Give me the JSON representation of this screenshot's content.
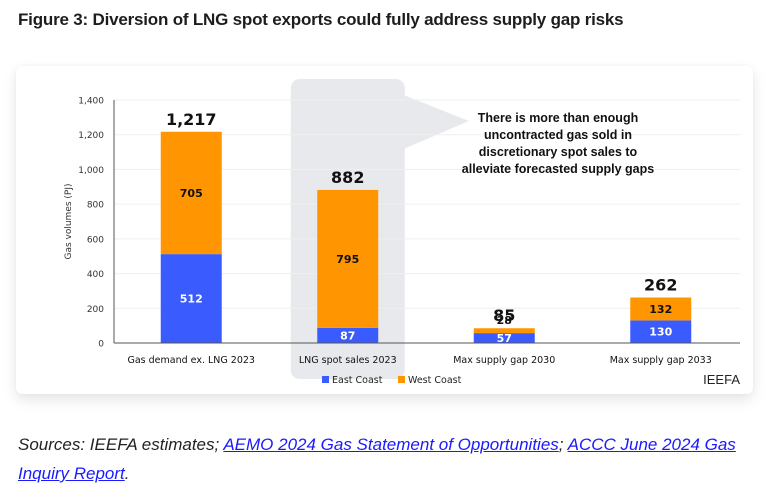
{
  "figure": {
    "title": "Figure 3: Diversion of LNG spot exports could fully address supply gap risks",
    "watermark": "IEEFA",
    "callout": [
      "There is more than enough",
      "uncontracted gas sold in",
      "discretionary spot sales to",
      "alleviate forecasted supply gaps"
    ]
  },
  "sources": {
    "prefix": "Sources: IEEFA estimates; ",
    "link1": "AEMO 2024 Gas Statement of Opportunities",
    "sep": "; ",
    "link2": "ACCC June 2024 Gas Inquiry Report",
    "suffix": "."
  },
  "chart_data": {
    "type": "bar",
    "stacked": true,
    "title": "",
    "xlabel": "",
    "ylabel": "Gas volumes (PJ)",
    "ylim": [
      0,
      1400
    ],
    "yticks": [
      0,
      200,
      400,
      600,
      800,
      1000,
      1200,
      1400
    ],
    "ytick_labels": [
      "0",
      "200",
      "400",
      "600",
      "800",
      "1,000",
      "1,200",
      "1,400"
    ],
    "grid": true,
    "categories": [
      "Gas demand ex. LNG 2023",
      "LNG spot sales 2023",
      "Max supply gap 2030",
      "Max supply gap 2033"
    ],
    "series": [
      {
        "name": "East Coast",
        "color": "#3a5cff",
        "values": [
          512,
          87,
          57,
          130
        ]
      },
      {
        "name": "West Coast",
        "color": "#ff9500",
        "values": [
          705,
          795,
          28,
          132
        ]
      }
    ],
    "totals": [
      1217,
      882,
      85,
      262
    ],
    "total_labels": [
      "1,217",
      "882",
      "85",
      "262"
    ],
    "highlighted_category": "LNG spot sales 2023",
    "legend_position": "bottom"
  }
}
